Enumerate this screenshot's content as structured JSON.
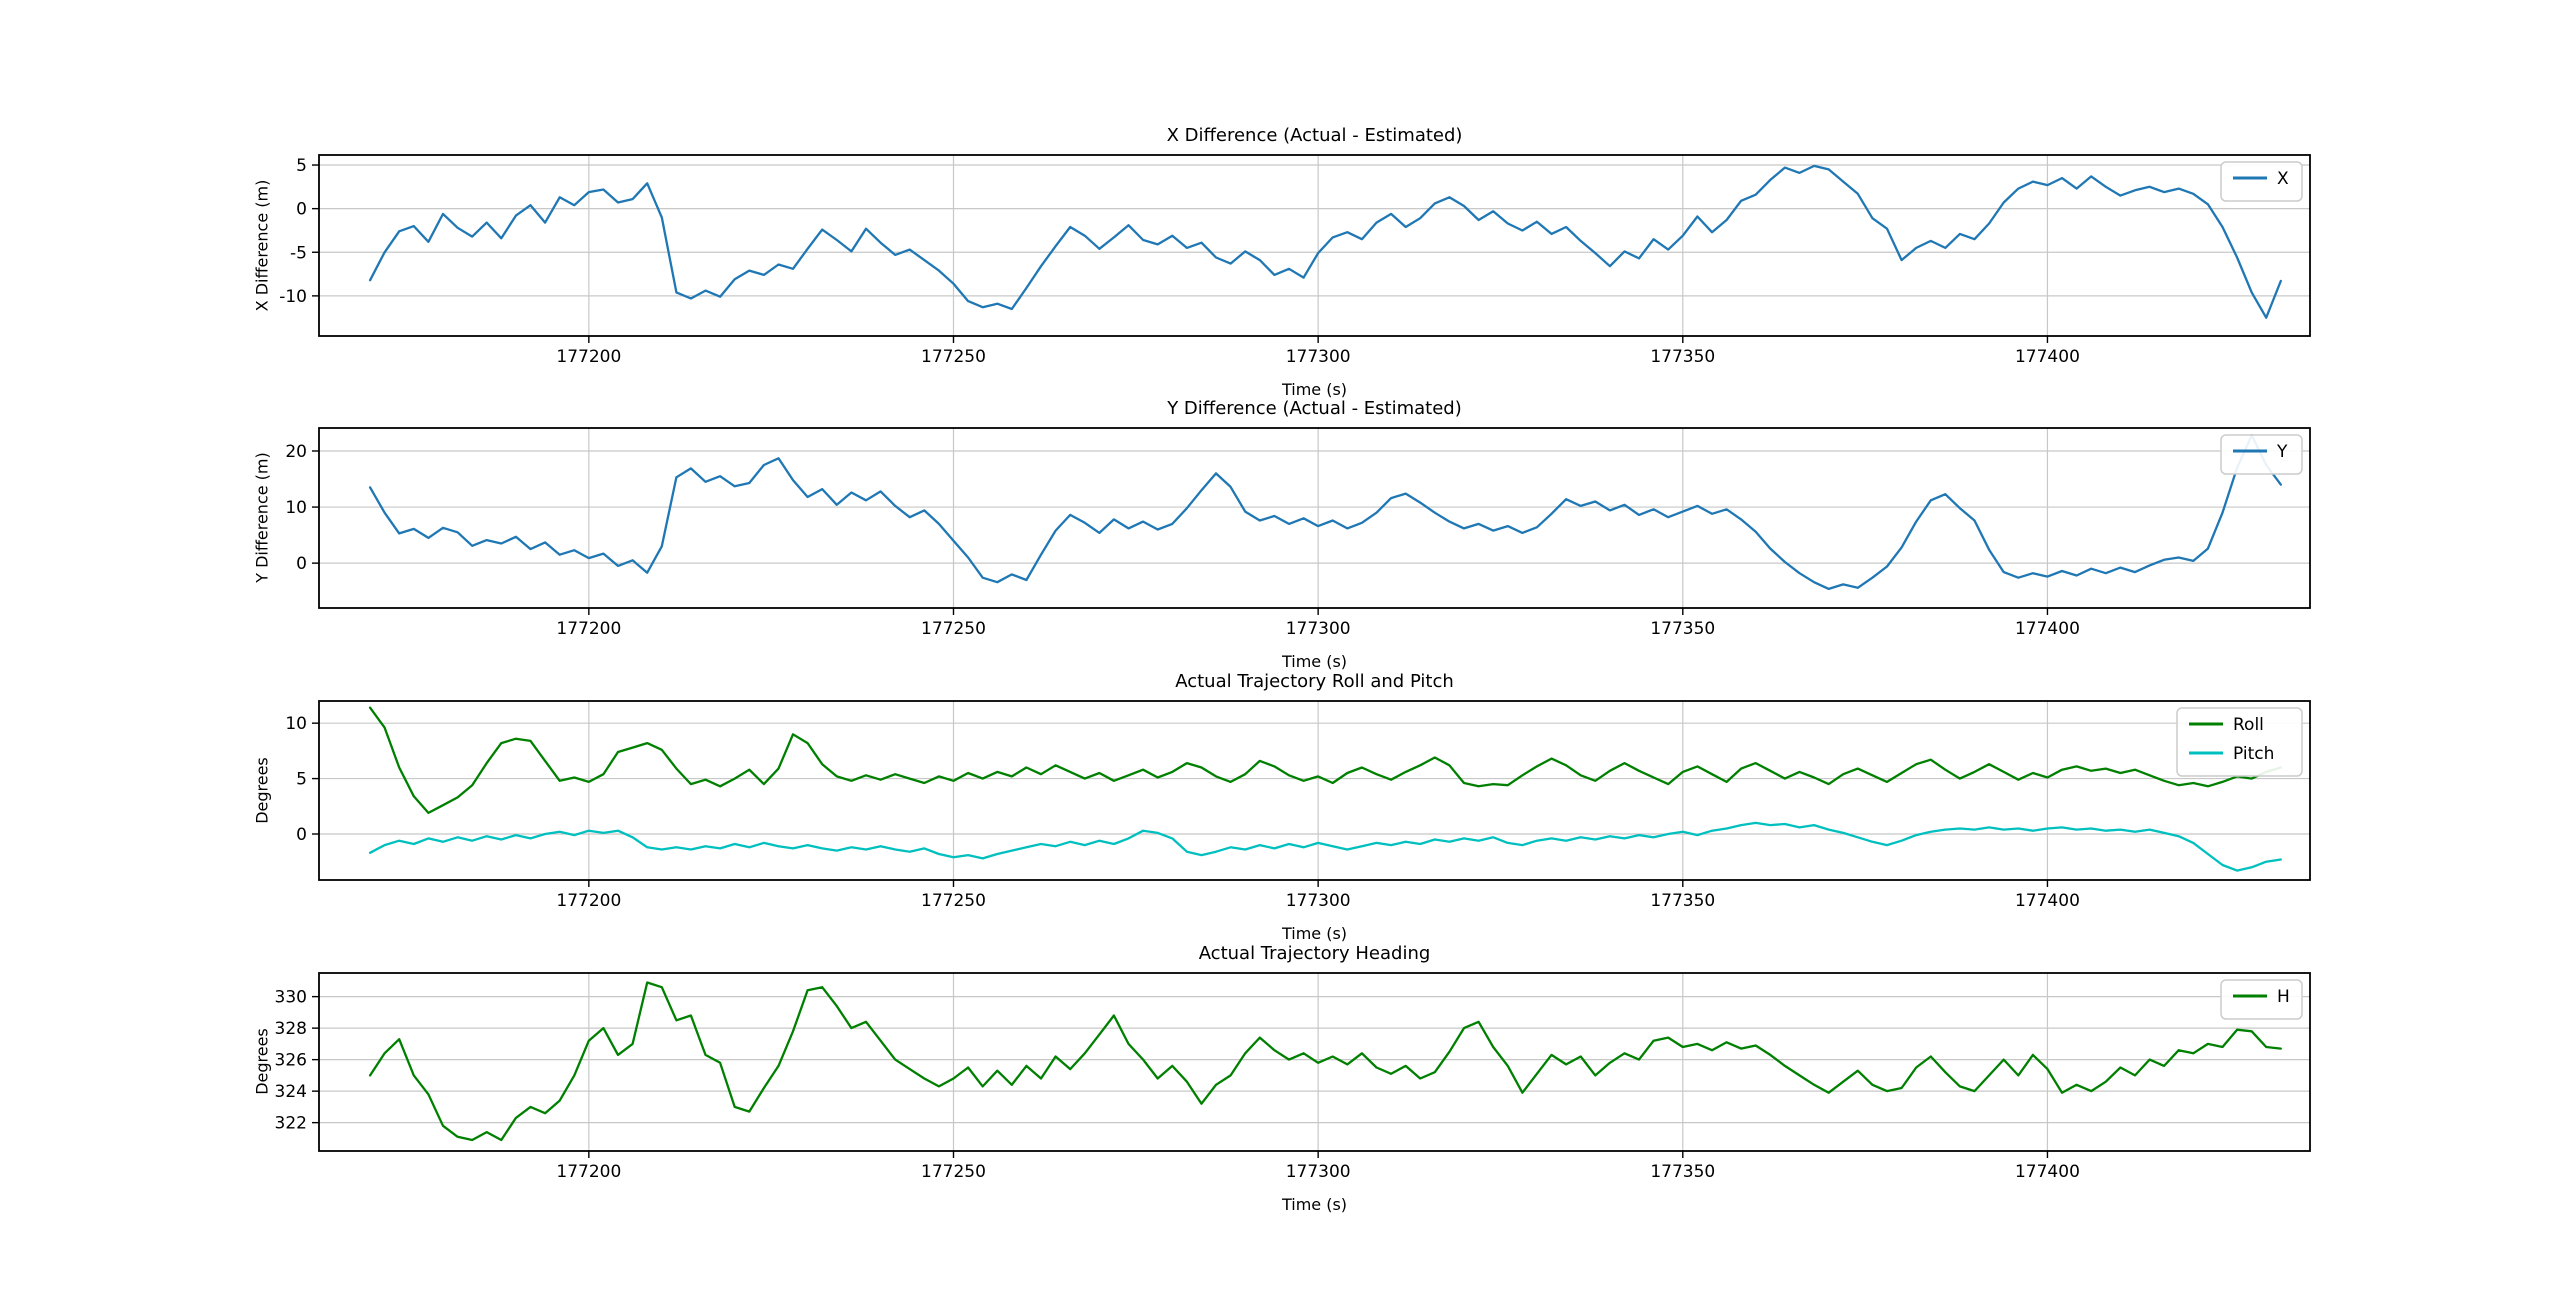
{
  "figure": {
    "background": "#ffffff",
    "frame_color": "#000000",
    "grid_color": "#c8c8c8"
  },
  "chart_data": [
    {
      "type": "line",
      "title": "X Difference (Actual - Estimated)",
      "xlabel": "Time (s)",
      "ylabel": "X Difference (m)",
      "xlim": [
        177163,
        177436
      ],
      "ylim": [
        -14.6,
        6.15
      ],
      "xticks": [
        177200,
        177250,
        177300,
        177350,
        177400
      ],
      "yticks": [
        5,
        0,
        -5,
        -10
      ],
      "grid": true,
      "legend_position": "upper right",
      "x_start": 177170,
      "x_step": 2,
      "series": [
        {
          "name": "X",
          "color": "#1f77b4",
          "values": [
            -8.2,
            -5.0,
            -2.6,
            -2.0,
            -3.8,
            -0.6,
            -2.2,
            -3.2,
            -1.6,
            -3.4,
            -0.8,
            0.4,
            -1.6,
            1.3,
            0.4,
            1.9,
            2.2,
            0.7,
            1.1,
            2.9,
            -1.0,
            -9.6,
            -10.3,
            -9.4,
            -10.1,
            -8.1,
            -7.1,
            -7.6,
            -6.4,
            -6.9,
            -4.6,
            -2.4,
            -3.6,
            -4.9,
            -2.3,
            -3.9,
            -5.3,
            -4.7,
            -5.9,
            -7.1,
            -8.6,
            -10.6,
            -11.3,
            -10.9,
            -11.5,
            -9.1,
            -6.6,
            -4.3,
            -2.1,
            -3.1,
            -4.6,
            -3.3,
            -1.9,
            -3.6,
            -4.1,
            -3.1,
            -4.5,
            -3.9,
            -5.6,
            -6.3,
            -4.9,
            -5.9,
            -7.6,
            -6.9,
            -7.9,
            -5.1,
            -3.3,
            -2.7,
            -3.5,
            -1.6,
            -0.6,
            -2.1,
            -1.1,
            0.6,
            1.3,
            0.3,
            -1.3,
            -0.3,
            -1.7,
            -2.5,
            -1.5,
            -2.9,
            -2.1,
            -3.7,
            -5.1,
            -6.6,
            -4.9,
            -5.7,
            -3.5,
            -4.7,
            -3.1,
            -0.9,
            -2.7,
            -1.3,
            0.9,
            1.6,
            3.3,
            4.7,
            4.1,
            4.9,
            4.5,
            3.1,
            1.7,
            -1.1,
            -2.3,
            -5.9,
            -4.5,
            -3.7,
            -4.5,
            -2.9,
            -3.5,
            -1.7,
            0.7,
            2.3,
            3.1,
            2.7,
            3.5,
            2.3,
            3.7,
            2.5,
            1.5,
            2.1,
            2.5,
            1.9,
            2.3,
            1.7,
            0.5,
            -2.1,
            -5.6,
            -9.6,
            -12.5,
            -8.3
          ]
        }
      ]
    },
    {
      "type": "line",
      "title": "Y Difference (Actual - Estimated)",
      "xlabel": "Time (s)",
      "ylabel": "Y Difference (m)",
      "xlim": [
        177163,
        177436
      ],
      "ylim": [
        -8.0,
        24.1
      ],
      "xticks": [
        177200,
        177250,
        177300,
        177350,
        177400
      ],
      "yticks": [
        20,
        10,
        0
      ],
      "grid": true,
      "legend_position": "upper right",
      "x_start": 177170,
      "x_step": 2,
      "series": [
        {
          "name": "Y",
          "color": "#1f77b4",
          "values": [
            13.5,
            9.0,
            5.3,
            6.1,
            4.5,
            6.3,
            5.5,
            3.1,
            4.1,
            3.5,
            4.7,
            2.5,
            3.7,
            1.5,
            2.3,
            0.9,
            1.7,
            -0.5,
            0.5,
            -1.7,
            3.0,
            15.3,
            16.9,
            14.5,
            15.5,
            13.7,
            14.3,
            17.5,
            18.7,
            14.8,
            11.8,
            13.2,
            10.4,
            12.6,
            11.2,
            12.8,
            10.2,
            8.2,
            9.4,
            7.0,
            4.0,
            1.0,
            -2.6,
            -3.4,
            -2.0,
            -3.0,
            1.5,
            5.8,
            8.6,
            7.2,
            5.4,
            7.8,
            6.2,
            7.4,
            6.0,
            7.0,
            9.8,
            13.0,
            16.0,
            13.6,
            9.2,
            7.6,
            8.4,
            7.0,
            8.0,
            6.6,
            7.6,
            6.2,
            7.2,
            9.0,
            11.6,
            12.4,
            10.8,
            9.0,
            7.4,
            6.2,
            7.0,
            5.8,
            6.6,
            5.4,
            6.4,
            8.8,
            11.4,
            10.2,
            11.0,
            9.4,
            10.4,
            8.6,
            9.6,
            8.2,
            9.2,
            10.2,
            8.8,
            9.6,
            7.8,
            5.6,
            2.6,
            0.2,
            -1.8,
            -3.4,
            -4.6,
            -3.8,
            -4.4,
            -2.6,
            -0.6,
            2.8,
            7.4,
            11.2,
            12.3,
            9.8,
            7.6,
            2.4,
            -1.6,
            -2.6,
            -1.8,
            -2.4,
            -1.4,
            -2.2,
            -1.0,
            -1.8,
            -0.8,
            -1.6,
            -0.4,
            0.6,
            1.0,
            0.4,
            2.6,
            9.0,
            17.0,
            22.8,
            17.5,
            14.0
          ]
        }
      ]
    },
    {
      "type": "line",
      "title": "Actual Trajectory Roll and Pitch",
      "xlabel": "Time (s)",
      "ylabel": "Degrees",
      "xlim": [
        177163,
        177436
      ],
      "ylim": [
        -4.15,
        12.0
      ],
      "xticks": [
        177200,
        177250,
        177300,
        177350,
        177400
      ],
      "yticks": [
        10,
        5,
        0
      ],
      "grid": true,
      "legend_position": "upper right",
      "x_start": 177170,
      "x_step": 2,
      "series": [
        {
          "name": "Roll",
          "color": "#008000",
          "values": [
            11.4,
            9.6,
            6.0,
            3.4,
            1.9,
            2.6,
            3.3,
            4.4,
            6.4,
            8.2,
            8.6,
            8.4,
            6.6,
            4.8,
            5.1,
            4.7,
            5.4,
            7.4,
            7.8,
            8.2,
            7.6,
            5.9,
            4.5,
            4.9,
            4.3,
            5.0,
            5.8,
            4.5,
            5.9,
            9.0,
            8.2,
            6.3,
            5.2,
            4.8,
            5.3,
            4.9,
            5.4,
            5.0,
            4.6,
            5.2,
            4.8,
            5.5,
            5.0,
            5.6,
            5.2,
            6.0,
            5.4,
            6.2,
            5.6,
            5.0,
            5.5,
            4.8,
            5.3,
            5.8,
            5.1,
            5.6,
            6.4,
            6.0,
            5.2,
            4.7,
            5.4,
            6.6,
            6.1,
            5.3,
            4.8,
            5.2,
            4.6,
            5.5,
            6.0,
            5.4,
            4.9,
            5.6,
            6.2,
            6.9,
            6.2,
            4.6,
            4.3,
            4.5,
            4.4,
            5.3,
            6.1,
            6.8,
            6.2,
            5.3,
            4.8,
            5.7,
            6.4,
            5.7,
            5.1,
            4.5,
            5.6,
            6.1,
            5.4,
            4.7,
            5.9,
            6.4,
            5.7,
            5.0,
            5.6,
            5.1,
            4.5,
            5.4,
            5.9,
            5.3,
            4.7,
            5.5,
            6.3,
            6.7,
            5.8,
            5.0,
            5.6,
            6.3,
            5.6,
            4.9,
            5.5,
            5.1,
            5.8,
            6.1,
            5.7,
            5.9,
            5.5,
            5.8,
            5.3,
            4.8,
            4.4,
            4.6,
            4.3,
            4.7,
            5.2,
            5.0,
            5.6,
            6.0
          ]
        },
        {
          "name": "Pitch",
          "color": "#00bfbf",
          "values": [
            -1.7,
            -1.0,
            -0.6,
            -0.9,
            -0.4,
            -0.7,
            -0.3,
            -0.6,
            -0.2,
            -0.5,
            -0.1,
            -0.4,
            0.0,
            0.2,
            -0.1,
            0.3,
            0.1,
            0.3,
            -0.3,
            -1.2,
            -1.4,
            -1.2,
            -1.4,
            -1.1,
            -1.3,
            -0.9,
            -1.2,
            -0.8,
            -1.1,
            -1.3,
            -1.0,
            -1.3,
            -1.5,
            -1.2,
            -1.4,
            -1.1,
            -1.4,
            -1.6,
            -1.3,
            -1.8,
            -2.1,
            -1.9,
            -2.2,
            -1.8,
            -1.5,
            -1.2,
            -0.9,
            -1.1,
            -0.7,
            -1.0,
            -0.6,
            -0.9,
            -0.4,
            0.3,
            0.1,
            -0.4,
            -1.6,
            -1.9,
            -1.6,
            -1.2,
            -1.4,
            -1.0,
            -1.3,
            -0.9,
            -1.2,
            -0.8,
            -1.1,
            -1.4,
            -1.1,
            -0.8,
            -1.0,
            -0.7,
            -0.9,
            -0.5,
            -0.7,
            -0.4,
            -0.6,
            -0.3,
            -0.8,
            -1.0,
            -0.6,
            -0.4,
            -0.6,
            -0.3,
            -0.5,
            -0.2,
            -0.4,
            -0.1,
            -0.3,
            0.0,
            0.2,
            -0.1,
            0.3,
            0.5,
            0.8,
            1.0,
            0.8,
            0.9,
            0.6,
            0.8,
            0.4,
            0.1,
            -0.3,
            -0.7,
            -1.0,
            -0.6,
            -0.1,
            0.2,
            0.4,
            0.5,
            0.4,
            0.6,
            0.4,
            0.5,
            0.3,
            0.5,
            0.6,
            0.4,
            0.5,
            0.3,
            0.4,
            0.2,
            0.4,
            0.1,
            -0.2,
            -0.8,
            -1.8,
            -2.8,
            -3.3,
            -3.0,
            -2.5,
            -2.3
          ]
        }
      ]
    },
    {
      "type": "line",
      "title": "Actual Trajectory Heading",
      "xlabel": "Time (s)",
      "ylabel": "Degrees",
      "xlim": [
        177163,
        177436
      ],
      "ylim": [
        320.2,
        331.5
      ],
      "xticks": [
        177200,
        177250,
        177300,
        177350,
        177400
      ],
      "yticks": [
        330,
        328,
        326,
        324,
        322
      ],
      "grid": true,
      "legend_position": "upper right",
      "x_start": 177170,
      "x_step": 2,
      "series": [
        {
          "name": "H",
          "color": "#008000",
          "values": [
            325.0,
            326.4,
            327.3,
            325.0,
            323.8,
            321.8,
            321.1,
            320.9,
            321.4,
            320.9,
            322.3,
            323.0,
            322.6,
            323.4,
            325.0,
            327.2,
            328.0,
            326.3,
            327.0,
            330.9,
            330.6,
            328.5,
            328.8,
            326.3,
            325.8,
            323.0,
            322.7,
            324.2,
            325.6,
            327.8,
            330.4,
            330.6,
            329.4,
            328.0,
            328.4,
            327.2,
            326.0,
            325.4,
            324.8,
            324.3,
            324.8,
            325.5,
            324.3,
            325.3,
            324.4,
            325.6,
            324.8,
            326.2,
            325.4,
            326.4,
            327.6,
            328.8,
            327.0,
            326.0,
            324.8,
            325.6,
            324.6,
            323.2,
            324.4,
            325.0,
            326.4,
            327.4,
            326.6,
            326.0,
            326.4,
            325.8,
            326.2,
            325.7,
            326.4,
            325.5,
            325.1,
            325.6,
            324.8,
            325.2,
            326.5,
            328.0,
            328.4,
            326.8,
            325.6,
            323.9,
            325.1,
            326.3,
            325.7,
            326.2,
            325.0,
            325.8,
            326.4,
            326.0,
            327.2,
            327.4,
            326.8,
            327.0,
            326.6,
            327.1,
            326.7,
            326.9,
            326.3,
            325.6,
            325.0,
            324.4,
            323.9,
            324.6,
            325.3,
            324.4,
            324.0,
            324.2,
            325.5,
            326.2,
            325.2,
            324.3,
            324.0,
            325.0,
            326.0,
            325.0,
            326.3,
            325.4,
            323.9,
            324.4,
            324.0,
            324.6,
            325.5,
            325.0,
            326.0,
            325.6,
            326.6,
            326.4,
            327.0,
            326.8,
            327.9,
            327.8,
            326.8,
            326.7
          ]
        }
      ]
    }
  ]
}
